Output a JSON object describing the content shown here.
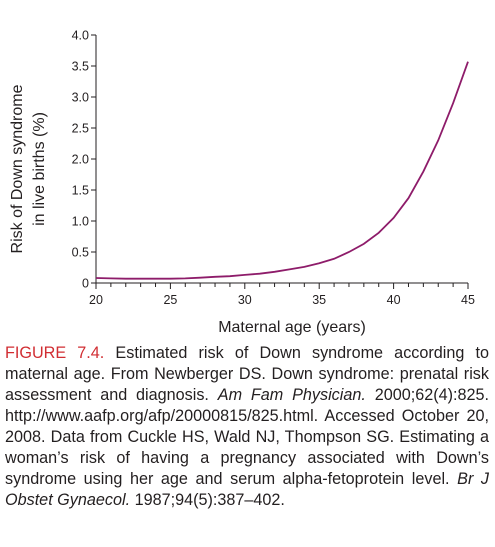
{
  "chart_data": {
    "type": "line",
    "xlabel": "Maternal age (years)",
    "ylabel_lines": [
      "Risk of Down syndrome",
      "in live births (%)"
    ],
    "xlim": [
      20,
      45
    ],
    "ylim": [
      0,
      4.0
    ],
    "xticks": [
      20,
      25,
      30,
      35,
      40,
      45
    ],
    "yticks": [
      0,
      0.5,
      1.0,
      1.5,
      2.0,
      2.5,
      3.0,
      3.5,
      4.0
    ],
    "yticklabels": [
      "0",
      "0.5",
      "1.0",
      "1.5",
      "2.0",
      "2.5",
      "3.0",
      "3.5",
      "4.0"
    ],
    "line_color": "#8e1c6a",
    "x": [
      20,
      21,
      22,
      23,
      24,
      25,
      26,
      27,
      28,
      29,
      30,
      31,
      32,
      33,
      34,
      35,
      36,
      37,
      38,
      39,
      40,
      41,
      42,
      43,
      44,
      45
    ],
    "y": [
      0.08,
      0.075,
      0.07,
      0.07,
      0.07,
      0.07,
      0.075,
      0.085,
      0.1,
      0.11,
      0.13,
      0.15,
      0.18,
      0.22,
      0.26,
      0.32,
      0.39,
      0.5,
      0.63,
      0.81,
      1.05,
      1.37,
      1.8,
      2.3,
      2.9,
      3.57
    ]
  },
  "caption": {
    "label": "FIGURE 7.4.",
    "text1": " Estimated risk of Down syndrome according to maternal age. From Newberger DS. Down syndrome: prenatal risk assessment and diagnosis. ",
    "journal1": "Am Fam Physician.",
    "text2": " 2000;62(4):825. http://www.aafp.org/afp/20000815/825.html. Accessed October 20, 2008. Data from Cuckle HS, Wald NJ, Thompson SG. Estimating a woman’s risk of having a pregnancy associated with Down’s syndrome using her age and serum alpha-fetoprotein level. ",
    "journal2": "Br J Obstet Gynaecol.",
    "text3": " 1987;94(5):387–402."
  }
}
